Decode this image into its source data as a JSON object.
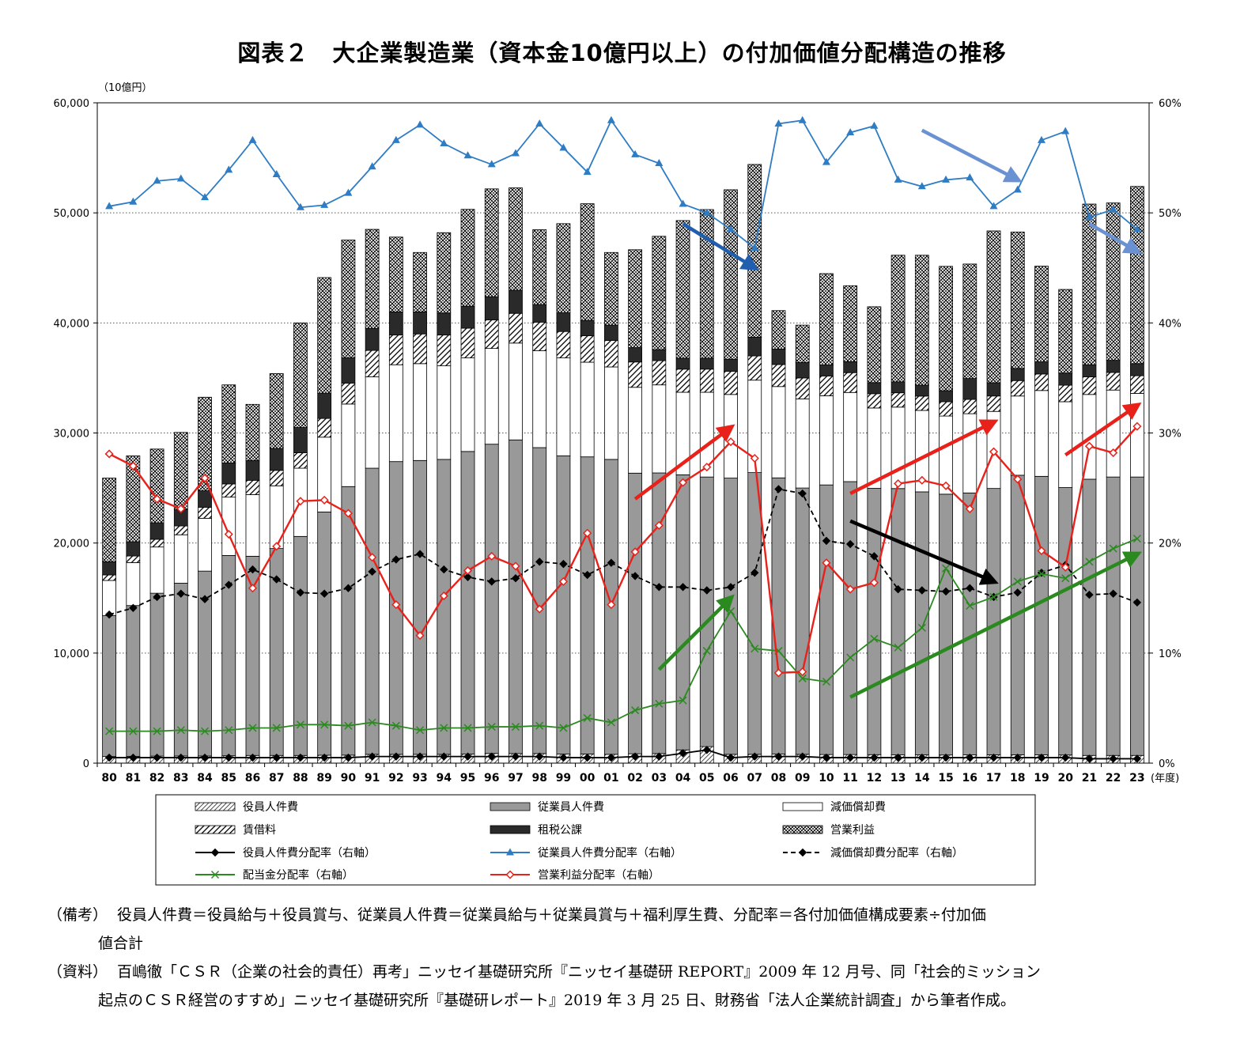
{
  "title": "図表２　大企業製造業（資本金10億円以上）の付加価値分配構造の推移",
  "notes": {
    "biko_head": "（備考）",
    "biko_line1": "役員人件費＝役員給与＋役員賞与、従業員人件費＝従業員給与＋従業員賞与＋福利厚生費、分配率＝各付加価値構成要素÷付加価",
    "biko_line2": "値合計",
    "shiryo_head": "（資料）",
    "shiryo_line1": "百嶋徹「ＣＳＲ（企業の社会的責任）再考」ニッセイ基礎研究所『ニッセイ基礎研 REPORT』2009 年 12 月号、同「社会的ミッション",
    "shiryo_line2": "起点のＣＳＲ経営のすすめ」ニッセイ基礎研究所『基礎研レポート』2019 年 3 月 25 日、財務省「法人企業統計調査」から筆者作成。"
  },
  "chart_data": {
    "type": "bar",
    "stacked": true,
    "categories": [
      "80",
      "81",
      "82",
      "83",
      "84",
      "85",
      "86",
      "87",
      "88",
      "89",
      "90",
      "91",
      "92",
      "93",
      "94",
      "95",
      "96",
      "97",
      "98",
      "99",
      "00",
      "01",
      "02",
      "03",
      "04",
      "05",
      "06",
      "07",
      "08",
      "09",
      "10",
      "11",
      "12",
      "13",
      "14",
      "15",
      "16",
      "17",
      "18",
      "19",
      "20",
      "21",
      "22",
      "23"
    ],
    "x_unit": "(年度)",
    "y_left": {
      "label": "（10億円）",
      "min": 0,
      "max": 60000,
      "step": 10000,
      "ticks": [
        "0",
        "10,000",
        "20,000",
        "30,000",
        "40,000",
        "50,000",
        "60,000"
      ]
    },
    "y_right": {
      "min": 0,
      "max": 60,
      "step": 10,
      "ticks": [
        "0%",
        "10%",
        "20%",
        "30%",
        "40%",
        "50%",
        "60%"
      ]
    },
    "grid": "horizontal dotted",
    "legend_position": "bottom",
    "bar_series": [
      {
        "name": "役員人件費",
        "pattern": "hatch-fine",
        "values": [
          600,
          620,
          640,
          650,
          650,
          670,
          700,
          700,
          700,
          720,
          730,
          800,
          800,
          800,
          800,
          820,
          880,
          870,
          870,
          820,
          830,
          800,
          850,
          870,
          1200,
          1500,
          800,
          800,
          820,
          800,
          780,
          780,
          770,
          750,
          750,
          740,
          750,
          760,
          760,
          760,
          740,
          700,
          700,
          700
        ]
      },
      {
        "name": "従業員人件費",
        "pattern": "gray",
        "values": [
          12800,
          13700,
          14800,
          15700,
          16800,
          18200,
          18100,
          18800,
          19900,
          22100,
          24400,
          26000,
          26600,
          26700,
          26800,
          27500,
          28100,
          28500,
          27800,
          27100,
          27000,
          26800,
          25500,
          25500,
          25000,
          24500,
          25100,
          25600,
          25100,
          24200,
          24500,
          24800,
          24200,
          24200,
          23900,
          23700,
          23800,
          24200,
          25400,
          25300,
          24300,
          25100,
          25300,
          25300
        ]
      },
      {
        "name": "減価償却費",
        "pattern": "white",
        "values": [
          3200,
          3900,
          4200,
          4400,
          4800,
          5300,
          5600,
          5700,
          6200,
          6800,
          7500,
          8300,
          8800,
          8800,
          8500,
          8500,
          8700,
          8800,
          8800,
          8900,
          8600,
          8400,
          7800,
          8000,
          7500,
          7700,
          7600,
          8400,
          8300,
          8100,
          8100,
          8100,
          7300,
          7400,
          7400,
          7100,
          7200,
          7000,
          7200,
          7800,
          7800,
          7700,
          7900,
          7600
        ]
      },
      {
        "name": "賃借料",
        "pattern": "hatch-diag",
        "values": [
          500,
          600,
          700,
          800,
          1000,
          1200,
          1300,
          1400,
          1400,
          1700,
          1900,
          2400,
          2700,
          2700,
          2800,
          2700,
          2600,
          2700,
          2600,
          2400,
          2400,
          2400,
          2300,
          2200,
          2100,
          2100,
          2100,
          2200,
          2000,
          1900,
          1800,
          1800,
          1300,
          1300,
          1300,
          1300,
          1300,
          1400,
          1400,
          1500,
          1500,
          1600,
          1600,
          1600
        ]
      },
      {
        "name": "租税公課",
        "pattern": "black",
        "values": [
          1200,
          1300,
          1500,
          1500,
          1500,
          1900,
          1800,
          2000,
          2300,
          2300,
          2300,
          2000,
          2100,
          2000,
          2000,
          2000,
          2100,
          2100,
          1600,
          1700,
          1400,
          1400,
          1300,
          1000,
          1000,
          1000,
          1100,
          1700,
          1400,
          1400,
          1000,
          1000,
          1000,
          1000,
          1000,
          1000,
          1900,
          1200,
          1100,
          1100,
          1100,
          1100,
          1100,
          1100
        ]
      },
      {
        "name": "営業利益",
        "pattern": "cross-hatch",
        "values": [
          7600,
          7800,
          6700,
          7000,
          8500,
          7100,
          5100,
          6800,
          9500,
          10500,
          10700,
          9000,
          6800,
          5400,
          7300,
          8800,
          9800,
          9300,
          6800,
          8100,
          10600,
          6600,
          8900,
          10300,
          12500,
          13500,
          15400,
          15700,
          3500,
          3400,
          8300,
          6900,
          6900,
          11500,
          11800,
          11300,
          10400,
          13800,
          12400,
          8700,
          7600,
          14600,
          14300,
          16100
        ]
      }
    ],
    "line_series": [
      {
        "name": "役員人件費分配率（右軸）",
        "color": "#000000",
        "marker": "diamond",
        "style": "solid",
        "values": [
          0.5,
          0.5,
          0.5,
          0.5,
          0.5,
          0.5,
          0.5,
          0.5,
          0.5,
          0.5,
          0.5,
          0.6,
          0.6,
          0.6,
          0.6,
          0.6,
          0.6,
          0.6,
          0.6,
          0.5,
          0.5,
          0.5,
          0.6,
          0.6,
          0.9,
          1.2,
          0.5,
          0.6,
          0.6,
          0.6,
          0.5,
          0.5,
          0.5,
          0.5,
          0.5,
          0.5,
          0.5,
          0.5,
          0.5,
          0.5,
          0.5,
          0.4,
          0.4,
          0.4
        ]
      },
      {
        "name": "従業員人件費分配率（右軸）",
        "color": "#2e7cc4",
        "marker": "triangle",
        "style": "solid",
        "values": [
          50.6,
          51.0,
          52.9,
          53.1,
          51.4,
          53.9,
          56.6,
          53.5,
          50.5,
          50.7,
          51.8,
          54.2,
          56.6,
          58.0,
          56.3,
          55.2,
          54.4,
          55.4,
          58.1,
          55.9,
          53.7,
          58.4,
          55.3,
          54.5,
          50.8,
          50.0,
          48.5,
          46.8,
          58.1,
          58.4,
          54.6,
          57.3,
          57.9,
          53.0,
          52.4,
          53.0,
          53.2,
          50.6,
          52.1,
          56.6,
          57.4,
          49.6,
          50.3,
          48.5
        ]
      },
      {
        "name": "減価償却費分配率（右軸）",
        "color": "#000000",
        "marker": "diamond",
        "style": "dashed",
        "values": [
          13.5,
          14.1,
          15.1,
          15.4,
          14.9,
          16.2,
          17.6,
          16.7,
          15.5,
          15.4,
          15.9,
          17.4,
          18.5,
          19.0,
          17.6,
          16.9,
          16.5,
          16.8,
          18.3,
          18.1,
          17.1,
          18.2,
          17.0,
          16.0,
          16.0,
          15.7,
          16.0,
          17.3,
          24.9,
          24.5,
          20.2,
          19.9,
          18.8,
          15.8,
          15.7,
          15.6,
          15.9,
          15.1,
          15.5,
          17.3,
          18.0,
          15.3,
          15.4,
          14.6
        ]
      },
      {
        "name": "配当金分配率（右軸）",
        "color": "#2b8a1f",
        "marker": "x",
        "style": "solid",
        "values": [
          2.9,
          2.9,
          2.9,
          3.0,
          2.9,
          3.0,
          3.2,
          3.2,
          3.5,
          3.5,
          3.4,
          3.7,
          3.4,
          3.0,
          3.2,
          3.2,
          3.3,
          3.3,
          3.4,
          3.2,
          4.1,
          3.7,
          4.8,
          5.4,
          5.7,
          10.2,
          13.8,
          10.4,
          10.2,
          7.7,
          7.4,
          9.6,
          11.3,
          10.5,
          12.3,
          17.7,
          14.3,
          15.1,
          16.5,
          17.2,
          16.8,
          18.3,
          19.5,
          20.4
        ]
      },
      {
        "name": "営業利益分配率（右軸）",
        "color": "#e8221a",
        "marker": "diamond-open",
        "style": "solid",
        "values": [
          28.1,
          27.0,
          24.0,
          23.1,
          25.9,
          20.8,
          15.9,
          19.7,
          23.8,
          23.9,
          22.7,
          18.7,
          14.4,
          11.6,
          15.2,
          17.5,
          18.8,
          17.9,
          14.0,
          16.5,
          20.9,
          14.4,
          19.2,
          21.6,
          25.5,
          26.9,
          29.2,
          27.7,
          8.2,
          8.3,
          18.2,
          15.8,
          16.4,
          25.4,
          25.7,
          25.2,
          23.1,
          28.3,
          25.8,
          19.3,
          17.8,
          28.8,
          28.2,
          30.6
        ]
      }
    ],
    "annotation_arrows": [
      {
        "color": "#1f5fae",
        "from": [
          "04",
          49
        ],
        "to": [
          "07",
          45
        ]
      },
      {
        "color": "#6a92d3",
        "from": [
          "14",
          57.5
        ],
        "to": [
          "18",
          53
        ]
      },
      {
        "color": "#6a92d3",
        "from": [
          "21",
          49
        ],
        "to": [
          "23",
          46.5
        ]
      },
      {
        "color": "#e8221a",
        "from": [
          "02",
          24
        ],
        "to": [
          "06",
          30.5
        ]
      },
      {
        "color": "#e8221a",
        "from": [
          "11",
          24.5
        ],
        "to": [
          "17",
          31
        ]
      },
      {
        "color": "#e8221a",
        "from": [
          "20",
          28
        ],
        "to": [
          "23",
          32.5
        ]
      },
      {
        "color": "#000000",
        "from": [
          "11",
          22
        ],
        "to": [
          "17",
          16.5
        ]
      },
      {
        "color": "#2b8a1f",
        "from": [
          "03",
          8.5
        ],
        "to": [
          "06",
          15
        ]
      },
      {
        "color": "#2b8a1f",
        "from": [
          "11",
          6
        ],
        "to": [
          "23",
          19
        ]
      }
    ]
  }
}
